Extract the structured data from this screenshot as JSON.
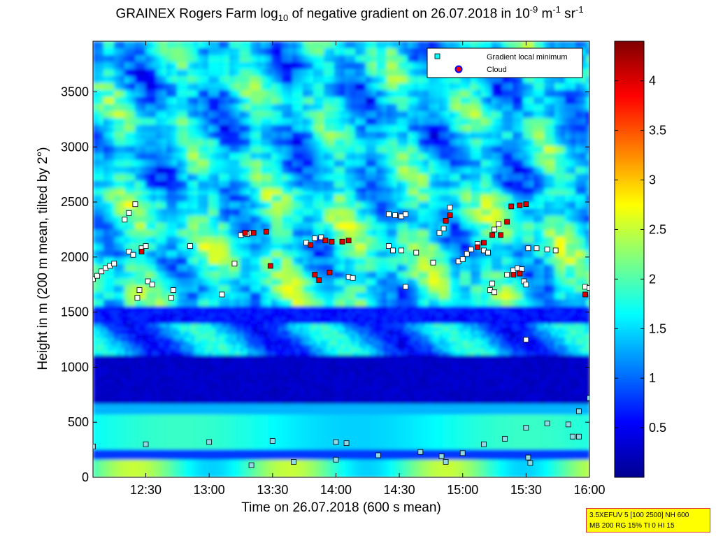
{
  "chart_data": {
    "type": "heatmap",
    "title": {
      "part1": "GRAINEX Rogers Farm log",
      "sub": "10",
      "part2": " of negative gradient on 26.07.2018 in 10",
      "sup1": "-9",
      "part3": " m",
      "sup2": "-1",
      "part4": " sr",
      "sup3": "-1"
    },
    "xlabel": "Time on 26.07.2018 (600 s mean)",
    "ylabel": "Height in m (200 m mean, tilted by 2°)",
    "xlim": [
      "12:05",
      "16:00"
    ],
    "ylim": [
      0,
      3960
    ],
    "x_ticks": [
      "12:30",
      "13:00",
      "13:30",
      "14:00",
      "14:30",
      "15:00",
      "15:30",
      "16:00"
    ],
    "y_ticks": [
      "0",
      "500",
      "1000",
      "1500",
      "2000",
      "2500",
      "3000",
      "3500"
    ],
    "colorbar": {
      "range": [
        0,
        4.4
      ],
      "ticks": [
        "0.5",
        "1",
        "1.5",
        "2",
        "2.5",
        "3",
        "3.5",
        "4"
      ],
      "colormap": "jet"
    },
    "legend": {
      "placement": "top-right",
      "entries": [
        {
          "label": "Gradient local minimum",
          "marker": "square",
          "color": "#00ffff"
        },
        {
          "label": "Cloud",
          "marker": "circle",
          "color": "#ff0000",
          "edge": "#0000ff"
        }
      ]
    },
    "series": [
      {
        "name": "Gradient local minimum",
        "points": [
          [
            "12:05",
            1800
          ],
          [
            "12:07",
            1830
          ],
          [
            "12:09",
            1870
          ],
          [
            "12:11",
            1900
          ],
          [
            "12:13",
            1920
          ],
          [
            "12:15",
            1940
          ],
          [
            "12:20",
            2340
          ],
          [
            "12:22",
            2400
          ],
          [
            "12:25",
            2480
          ],
          [
            "12:22",
            2050
          ],
          [
            "12:24",
            2020
          ],
          [
            "12:28",
            2080
          ],
          [
            "12:30",
            2100
          ],
          [
            "12:31",
            1780
          ],
          [
            "12:33",
            1750
          ],
          [
            "12:27",
            1700
          ],
          [
            "12:26",
            1630
          ],
          [
            "12:43",
            1700
          ],
          [
            "12:42",
            1630
          ],
          [
            "12:51",
            2100
          ],
          [
            "13:06",
            1660
          ],
          [
            "13:12",
            1940
          ],
          [
            "13:15",
            2200
          ],
          [
            "13:18",
            2210
          ],
          [
            "13:20",
            2220
          ],
          [
            "13:46",
            2130
          ],
          [
            "13:50",
            2170
          ],
          [
            "13:53",
            2180
          ],
          [
            "14:06",
            1820
          ],
          [
            "14:08",
            1810
          ],
          [
            "14:25",
            2390
          ],
          [
            "14:28",
            2380
          ],
          [
            "14:31",
            2370
          ],
          [
            "14:33",
            2390
          ],
          [
            "14:25",
            2100
          ],
          [
            "14:27",
            2060
          ],
          [
            "14:31",
            2060
          ],
          [
            "14:33",
            1730
          ],
          [
            "14:38",
            2040
          ],
          [
            "14:46",
            1950
          ],
          [
            "14:49",
            2220
          ],
          [
            "14:51",
            2260
          ],
          [
            "14:54",
            2450
          ],
          [
            "14:58",
            1960
          ],
          [
            "15:00",
            1980
          ],
          [
            "15:02",
            2030
          ],
          [
            "15:04",
            2070
          ],
          [
            "15:07",
            2120
          ],
          [
            "15:10",
            2060
          ],
          [
            "15:12",
            2040
          ],
          [
            "15:15",
            2250
          ],
          [
            "15:17",
            2300
          ],
          [
            "15:14",
            1760
          ],
          [
            "15:13",
            1700
          ],
          [
            "15:15",
            1680
          ],
          [
            "15:21",
            1840
          ],
          [
            "15:24",
            1880
          ],
          [
            "15:26",
            1900
          ],
          [
            "15:28",
            1890
          ],
          [
            "15:29",
            1780
          ],
          [
            "15:30",
            1750
          ],
          [
            "15:31",
            2080
          ],
          [
            "15:35",
            2080
          ],
          [
            "15:40",
            2070
          ],
          [
            "15:44",
            2060
          ],
          [
            "15:58",
            1730
          ],
          [
            "16:00",
            1720
          ],
          [
            "15:30",
            1250
          ],
          [
            "12:05",
            280
          ],
          [
            "12:30",
            300
          ],
          [
            "13:00",
            320
          ],
          [
            "13:30",
            330
          ],
          [
            "14:00",
            320
          ],
          [
            "14:05",
            310
          ],
          [
            "13:20",
            110
          ],
          [
            "13:40",
            140
          ],
          [
            "14:00",
            160
          ],
          [
            "14:20",
            200
          ],
          [
            "14:40",
            230
          ],
          [
            "14:50",
            190
          ],
          [
            "14:52",
            140
          ],
          [
            "15:00",
            220
          ],
          [
            "15:10",
            300
          ],
          [
            "15:20",
            350
          ],
          [
            "15:30",
            450
          ],
          [
            "15:40",
            490
          ],
          [
            "15:50",
            480
          ],
          [
            "15:55",
            600
          ],
          [
            "16:00",
            720
          ],
          [
            "15:31",
            180
          ],
          [
            "15:32",
            130
          ],
          [
            "15:52",
            370
          ],
          [
            "15:55",
            370
          ]
        ]
      },
      {
        "name": "Cloud",
        "points": [
          [
            "12:28",
            2050
          ],
          [
            "13:17",
            2220
          ],
          [
            "13:21",
            2220
          ],
          [
            "13:27",
            2230
          ],
          [
            "13:29",
            1920
          ],
          [
            "13:48",
            2110
          ],
          [
            "13:55",
            2150
          ],
          [
            "13:58",
            2140
          ],
          [
            "14:03",
            2140
          ],
          [
            "14:06",
            2150
          ],
          [
            "13:50",
            1840
          ],
          [
            "13:52",
            1790
          ],
          [
            "13:57",
            1860
          ],
          [
            "14:52",
            2330
          ],
          [
            "14:54",
            2380
          ],
          [
            "15:07",
            2090
          ],
          [
            "15:10",
            2130
          ],
          [
            "15:14",
            2200
          ],
          [
            "15:18",
            2200
          ],
          [
            "15:21",
            2320
          ],
          [
            "15:23",
            2460
          ],
          [
            "15:27",
            2470
          ],
          [
            "15:30",
            2480
          ],
          [
            "15:58",
            1660
          ],
          [
            "15:24",
            1840
          ],
          [
            "15:27",
            1850
          ]
        ]
      }
    ]
  },
  "info_box": {
    "line1": "3.5XEFUV 5 [100 2500] NH 600",
    "line2": "MB 200 RG 15% TI 0 HI 15"
  }
}
